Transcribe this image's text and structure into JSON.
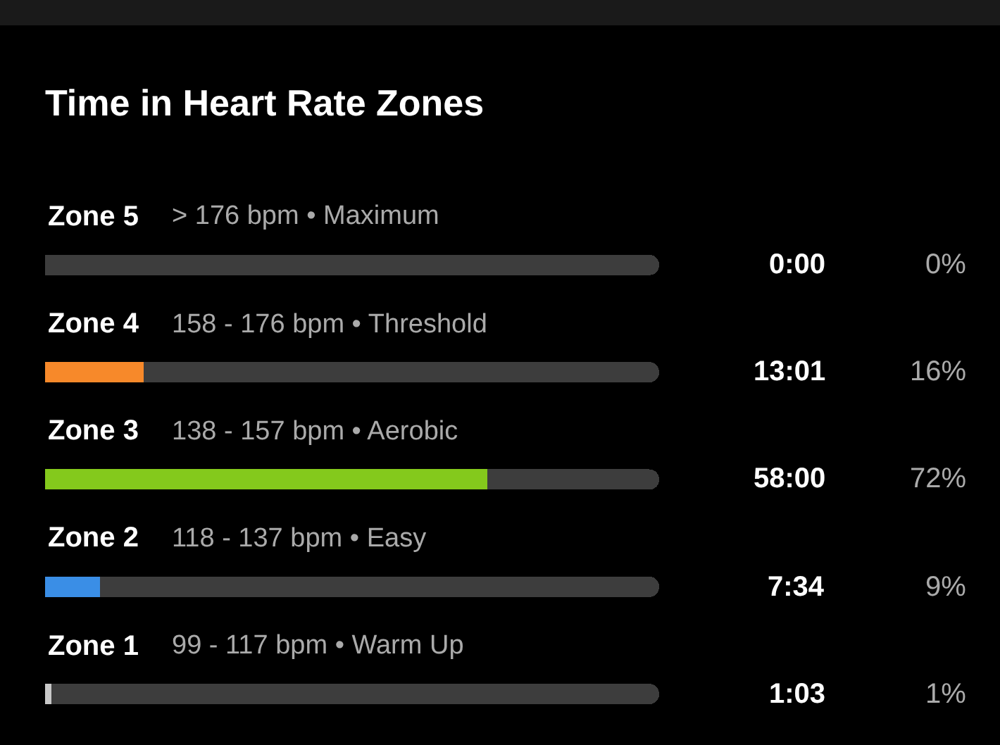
{
  "chart_data": {
    "type": "bar",
    "orientation": "horizontal",
    "title": "Time in Heart Rate Zones",
    "categories": [
      "Zone 5",
      "Zone 4",
      "Zone 3",
      "Zone 2",
      "Zone 1"
    ],
    "series": [
      {
        "colors": [
          "#e0393e",
          "#f7892a",
          "#84c91c",
          "#3a8ee6",
          "#c8c8c8"
        ],
        "values": [
          0,
          16,
          72,
          9,
          1
        ],
        "value_labels": [
          "0%",
          "16%",
          "72%",
          "9%",
          "1%"
        ]
      },
      {
        "color": "#3d3d3d",
        "values": [
          100,
          84,
          28,
          91,
          99
        ]
      }
    ],
    "stacked": true,
    "xlim": [
      0,
      100
    ],
    "tick_labels": false,
    "grid": false,
    "annotations": [
      "> 176 bpm • Maximum",
      "158 - 176 bpm • Threshold",
      "138 - 157 bpm • Aerobic",
      "118 - 137 bpm • Easy",
      "99 - 117 bpm • Warm Up",
      "0:00",
      "13:01",
      "58:00",
      "7:34",
      "1:03"
    ]
  }
}
